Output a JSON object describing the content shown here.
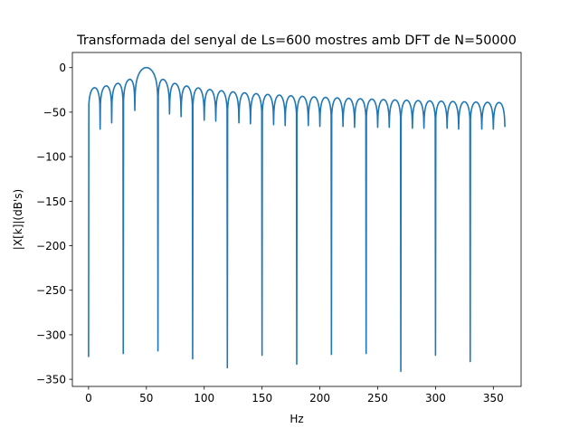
{
  "chart_data": {
    "type": "line",
    "title": "Transformada del senyal de Ls=600 mostres amb DFT de N=50000",
    "xlabel": "Hz",
    "ylabel": "|X[k]|(dB's)",
    "xlim": [
      -14.0,
      374.0
    ],
    "ylim": [
      -358.0,
      17.0
    ],
    "x_ticks": [
      0,
      50,
      100,
      150,
      200,
      250,
      300,
      350
    ],
    "y_ticks": [
      0,
      -50,
      -100,
      -150,
      -200,
      -250,
      -300,
      -350
    ],
    "grid": false,
    "line_color": "#1f77b4",
    "main_lobe_center": 50,
    "null_spacing": 10,
    "x_start": 0,
    "x_end": 360,
    "first_null": 10,
    "last_null": 350,
    "deep_nulls": [
      {
        "x": 0,
        "y": -325
      },
      {
        "x": 30,
        "y": -321
      },
      {
        "x": 60,
        "y": -318
      },
      {
        "x": 90,
        "y": -327
      },
      {
        "x": 120,
        "y": -337
      },
      {
        "x": 150,
        "y": -323
      },
      {
        "x": 180,
        "y": -333
      },
      {
        "x": 210,
        "y": -322
      },
      {
        "x": 240,
        "y": -321
      },
      {
        "x": 270,
        "y": -341
      },
      {
        "x": 300,
        "y": -323
      },
      {
        "x": 330,
        "y": -330
      }
    ],
    "shallow_null_depth": [
      {
        "x": 10,
        "y": -69
      },
      {
        "x": 20,
        "y": -62
      },
      {
        "x": 40,
        "y": -48
      },
      {
        "x": 70,
        "y": -52
      },
      {
        "x": 80,
        "y": -55
      },
      {
        "x": 100,
        "y": -59
      },
      {
        "x": 110,
        "y": -60
      },
      {
        "x": 130,
        "y": -62
      },
      {
        "x": 140,
        "y": -63
      },
      {
        "x": 160,
        "y": -64
      },
      {
        "x": 170,
        "y": -65
      },
      {
        "x": 190,
        "y": -65
      },
      {
        "x": 200,
        "y": -66
      },
      {
        "x": 220,
        "y": -66
      },
      {
        "x": 230,
        "y": -67
      },
      {
        "x": 250,
        "y": -67
      },
      {
        "x": 260,
        "y": -67
      },
      {
        "x": 280,
        "y": -68
      },
      {
        "x": 290,
        "y": -68
      },
      {
        "x": 310,
        "y": -68
      },
      {
        "x": 320,
        "y": -69
      },
      {
        "x": 340,
        "y": -69
      },
      {
        "x": 350,
        "y": -69
      }
    ]
  }
}
